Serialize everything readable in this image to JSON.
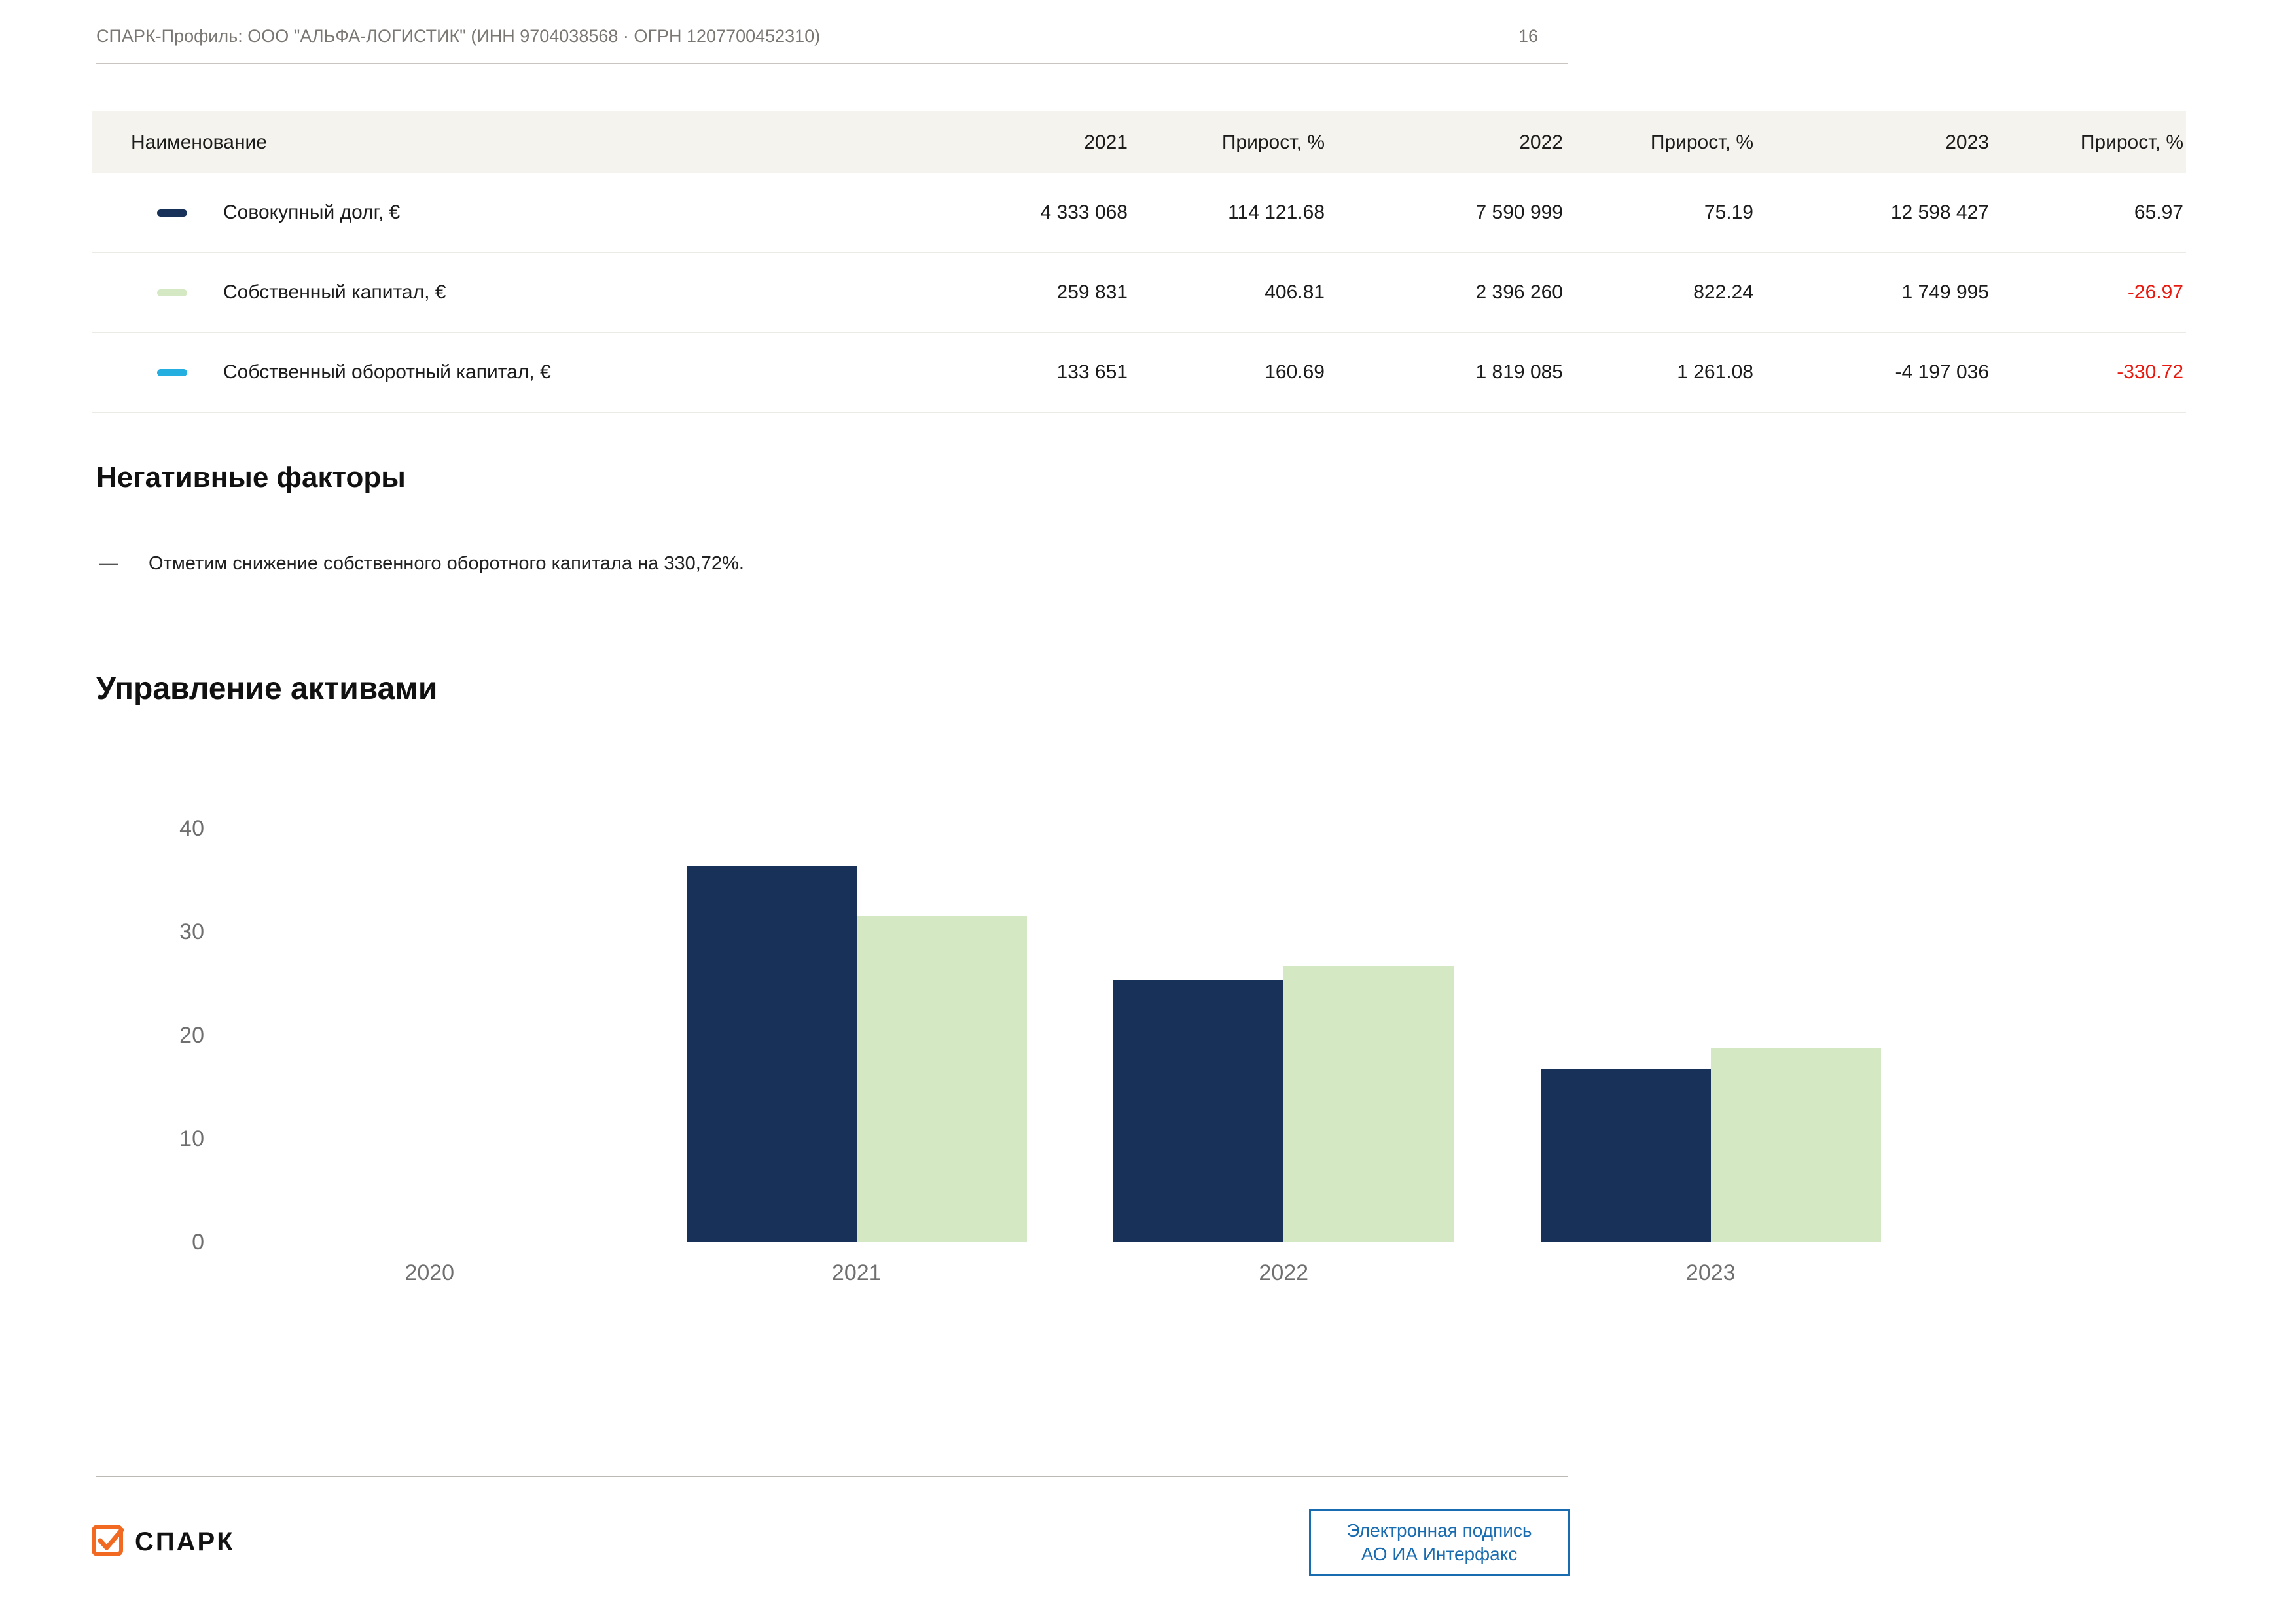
{
  "header": {
    "title": "СПАРК-Профиль: ООО \"АЛЬФА-ЛОГИСТИК\" (ИНН 9704038568 · ОГРН 1207700452310)",
    "page_number": "16"
  },
  "table": {
    "columns": [
      "Наименование",
      "2021",
      "Прирост, %",
      "2022",
      "Прирост, %",
      "2023",
      "Прирост, %"
    ],
    "rows": [
      {
        "label": "Совокупный долг, €",
        "swatch_color": "#173159",
        "values": [
          "4 333 068",
          "114 121.68",
          "7 590 999",
          "75.19",
          "12 598 427",
          "65.97"
        ]
      },
      {
        "label": "Собственный капитал, €",
        "swatch_color": "#d5e8c4",
        "values": [
          "259 831",
          "406.81",
          "2 396 260",
          "822.24",
          "1 749 995",
          "-26.97"
        ]
      },
      {
        "label": "Собственный оборотный капитал, €",
        "swatch_color": "#25aee0",
        "values": [
          "133 651",
          "160.69",
          "1 819 085",
          "1 261.08",
          "-4 197 036",
          "-330.72"
        ]
      }
    ]
  },
  "negative_factors": {
    "heading": "Негативные факторы",
    "bullet_dash": "—",
    "items": [
      "Отметим снижение собственного оборотного капитала на 330,72%."
    ]
  },
  "assets_section": {
    "heading": "Управление активами"
  },
  "chart_data": {
    "type": "bar",
    "title": "Управление активами",
    "categories": [
      "2020",
      "2021",
      "2022",
      "2023"
    ],
    "series": [
      {
        "name": "navy-series",
        "color": "#173159",
        "values": [
          null,
          36.4,
          25.4,
          16.8
        ]
      },
      {
        "name": "green-series",
        "color": "#d5e8c4",
        "values": [
          null,
          31.6,
          26.7,
          18.8
        ]
      }
    ],
    "xlabel": "",
    "ylabel": "",
    "ylim": [
      0,
      40
    ],
    "yticks": [
      0,
      10,
      20,
      30,
      40
    ],
    "grid": false,
    "legend": "none"
  },
  "footer": {
    "logo_text": "СПАРК",
    "signature_line1": "Электронная подпись",
    "signature_line2": "АО ИА Интерфакс"
  },
  "colors": {
    "navy": "#173159",
    "green": "#d5e8c4",
    "cyan": "#25aee0",
    "negative_red": "#e8190f",
    "table_header_bg": "#f4f3ed",
    "muted_text": "#7a7672",
    "axis_text": "#6f6f6f",
    "signature_blue": "#1a6cb0",
    "logo_orange": "#f26a21"
  }
}
